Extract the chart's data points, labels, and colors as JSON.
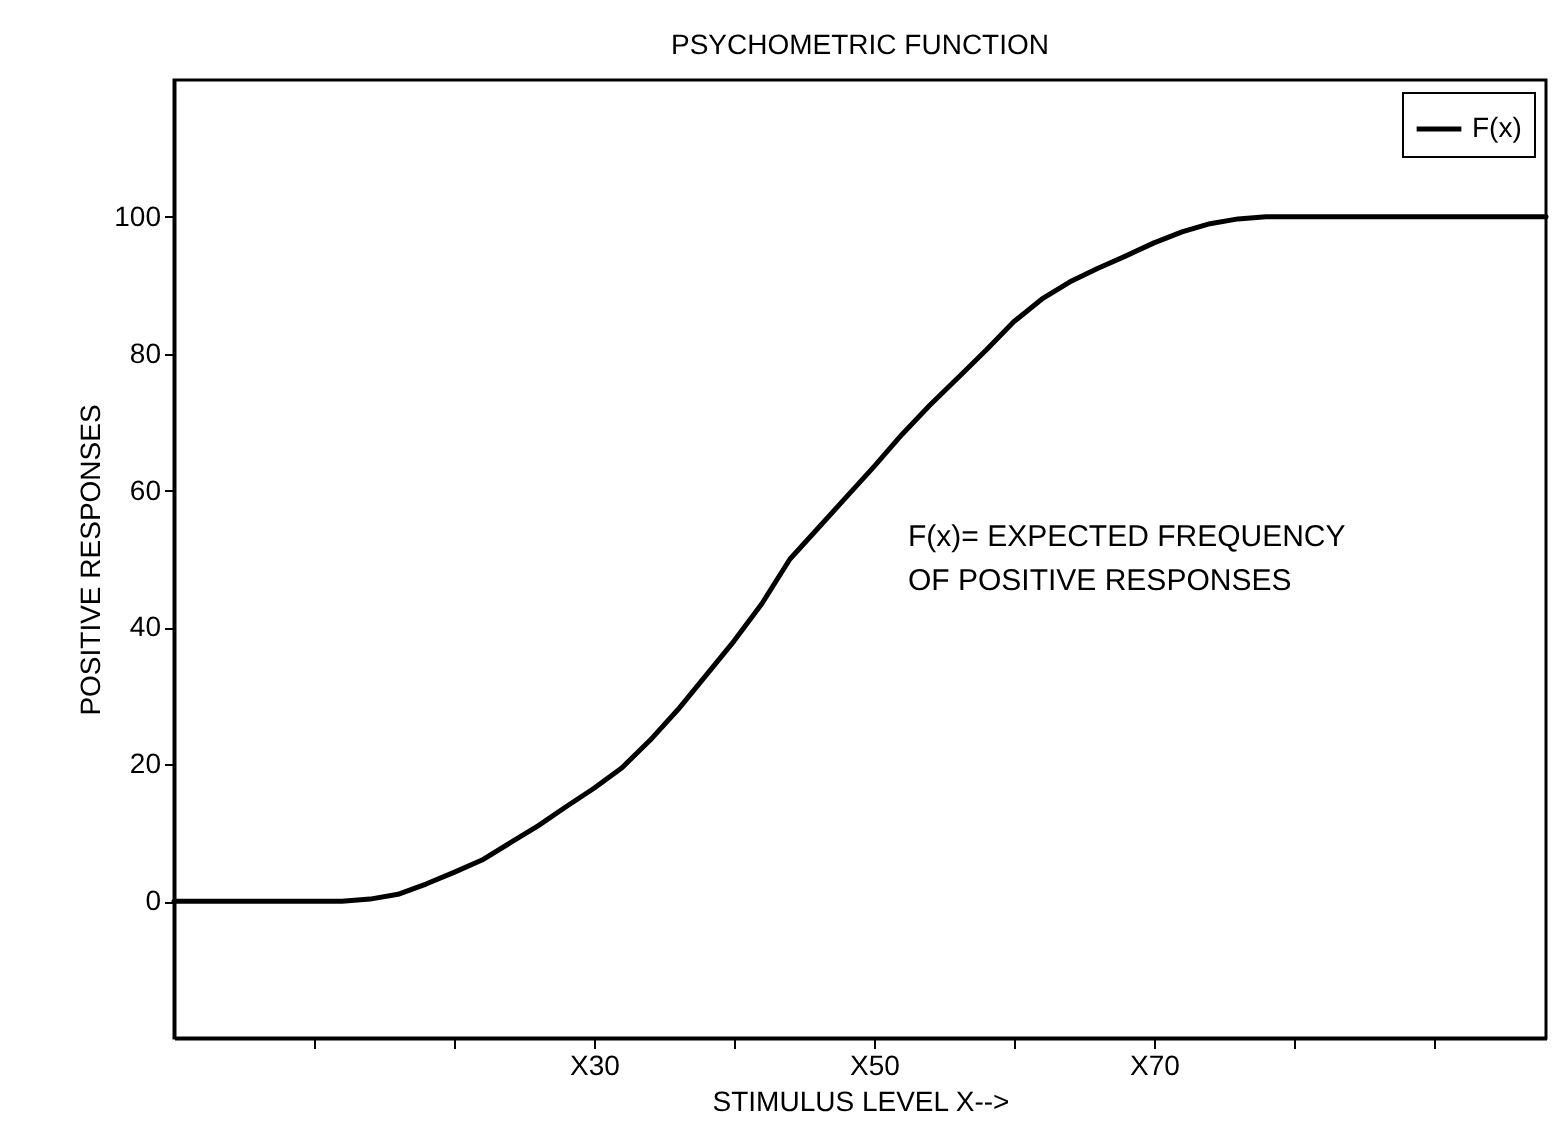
{
  "chart_data": {
    "type": "line",
    "title": "PSYCHOMETRIC FUNCTION",
    "xlabel": "STIMULUS LEVEL X-->",
    "ylabel": "POSITIVE RESPONSES",
    "annotations": [
      "F(x)= EXPECTED FREQUENCY\nOF POSITIVE RESPONSES"
    ],
    "categories": [
      null,
      null,
      null,
      null,
      null,
      null,
      null,
      null,
      null,
      null,
      null,
      null,
      null,
      null,
      null,
      "X30",
      null,
      null,
      null,
      null,
      null,
      null,
      null,
      null,
      null,
      "X50",
      null,
      null,
      null,
      null,
      null,
      null,
      null,
      null,
      null,
      "X70",
      null,
      null,
      null,
      null,
      null,
      null,
      null,
      null,
      null,
      null,
      null,
      null,
      null,
      null
    ],
    "series": [
      {
        "name": "F(x)",
        "color": "#000000",
        "values": [
          0,
          0,
          0,
          0,
          0,
          0,
          0,
          0.3,
          1.0,
          2.5,
          4.2,
          6.0,
          8.5,
          11.0,
          13.8,
          16.5,
          19.5,
          23.5,
          28,
          33,
          38,
          43.5,
          50,
          54.5,
          59,
          63.5,
          68.2,
          72.5,
          76.5,
          80.5,
          84.7,
          88,
          90.5,
          92.5,
          94.3,
          96.2,
          97.8,
          99,
          99.7,
          100,
          100,
          100,
          100,
          100,
          100,
          100,
          100,
          100,
          100,
          100
        ]
      }
    ],
    "ylim": [
      -20,
      120
    ],
    "yticks": [
      0,
      20,
      40,
      60,
      80,
      100
    ],
    "legend": "top right",
    "grid": false,
    "marker": "none",
    "line_style": "solid"
  }
}
